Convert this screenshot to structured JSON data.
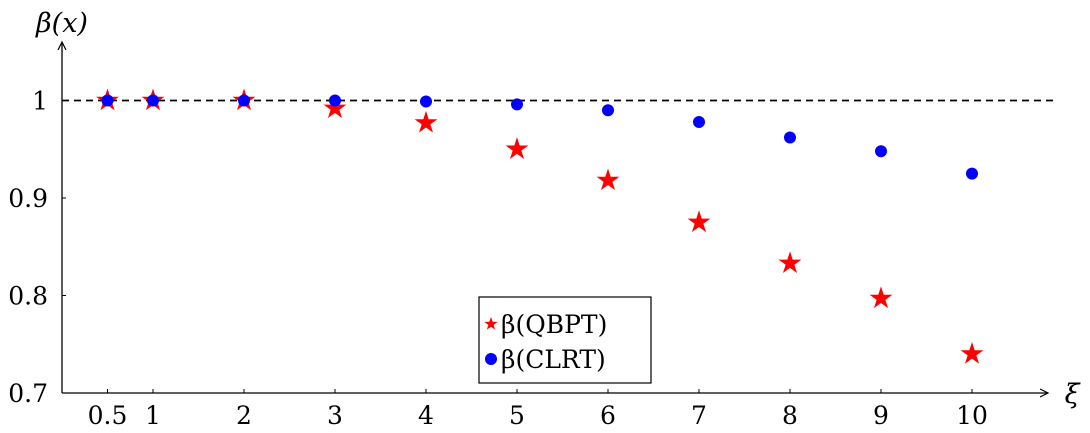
{
  "chart_data": {
    "type": "scatter",
    "ylabel": "β(x)",
    "xlabel": "ξ",
    "xlim": [
      0,
      11
    ],
    "ylim": [
      0.7,
      1.05
    ],
    "x_ticks": [
      {
        "value": 0.5,
        "label": "0.5"
      },
      {
        "value": 1,
        "label": "1"
      },
      {
        "value": 2,
        "label": "2"
      },
      {
        "value": 3,
        "label": "3"
      },
      {
        "value": 4,
        "label": "4"
      },
      {
        "value": 5,
        "label": "5"
      },
      {
        "value": 6,
        "label": "6"
      },
      {
        "value": 7,
        "label": "7"
      },
      {
        "value": 8,
        "label": "8"
      },
      {
        "value": 9,
        "label": "9"
      },
      {
        "value": 10,
        "label": "10"
      }
    ],
    "y_ticks": [
      {
        "value": 0.7,
        "label": "0.7"
      },
      {
        "value": 0.8,
        "label": "0.8"
      },
      {
        "value": 0.9,
        "label": "0.9"
      },
      {
        "value": 1.0,
        "label": "1"
      }
    ],
    "reference_line": {
      "y": 1.0,
      "style": "dashed",
      "color": "#000000"
    },
    "grid": false,
    "legend_position": "bottom-center",
    "x": [
      0.5,
      1,
      2,
      3,
      4,
      5,
      6,
      7,
      8,
      9,
      10
    ],
    "series": [
      {
        "name": "β(QBPT)",
        "marker": "star",
        "color": "#ff0000",
        "values": [
          1.0,
          1.0,
          1.0,
          0.992,
          0.977,
          0.95,
          0.918,
          0.875,
          0.833,
          0.797,
          0.74
        ]
      },
      {
        "name": "β(CLRT)",
        "marker": "circle",
        "color": "#0000ff",
        "values": [
          1.0,
          1.0,
          1.0,
          1.0,
          0.999,
          0.996,
          0.99,
          0.978,
          0.962,
          0.948,
          0.925
        ]
      }
    ]
  }
}
